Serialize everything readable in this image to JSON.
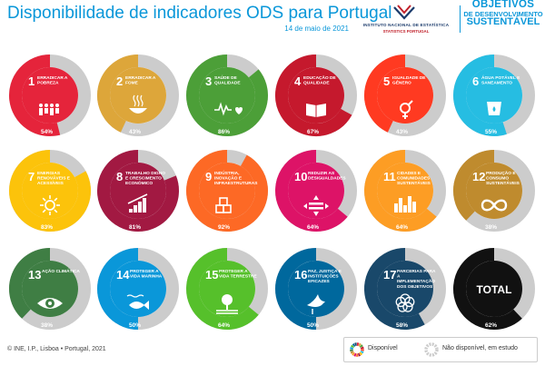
{
  "header": {
    "title": "Disponibilidade de indicadores ODS para Portugal",
    "date": "14 de maio de 2021",
    "ine_line1": "INSTITUTO NACIONAL DE ESTATÍSTICA",
    "ine_line2": "STATISTICS PORTUGAL",
    "sdg_brand_line1": "OBJETIVOS",
    "sdg_brand_line2": "DE DESENVOLVIMENTO",
    "sdg_brand_line3": "SUSTENTÁVEL"
  },
  "footer": {
    "copyright": "© INE, I.P., Lisboa • Portugal, 2021",
    "legend_available": "Disponível",
    "legend_unavailable": "Não disponível, em estudo"
  },
  "colors": {
    "brand_blue": "#0a97d9",
    "unavailable": "#cccccc"
  },
  "chart_data": {
    "type": "donut-grid",
    "unit": "%",
    "series": [
      {
        "name": "Disponível"
      },
      {
        "name": "Não disponível, em estudo"
      }
    ],
    "goals": [
      {
        "number": "1",
        "label": "ERRADICAR A POBREZA",
        "value": 54,
        "value_label": "54%",
        "color": "#e5243b",
        "icon": "family-icon"
      },
      {
        "number": "2",
        "label": "ERRADICAR A FOME",
        "value": 43,
        "value_label": "43%",
        "color": "#dda63a",
        "icon": "bowl-icon"
      },
      {
        "number": "3",
        "label": "SAÚDE DE QUALIDADE",
        "value": 86,
        "value_label": "86%",
        "color": "#4c9f38",
        "icon": "heartbeat-icon"
      },
      {
        "number": "4",
        "label": "EDUCAÇÃO DE QUALIDADE",
        "value": 67,
        "value_label": "67%",
        "color": "#c5192d",
        "icon": "book-icon"
      },
      {
        "number": "5",
        "label": "IGUALDADE DE GÉNERO",
        "value": 43,
        "value_label": "43%",
        "color": "#ff3a21",
        "icon": "gender-icon"
      },
      {
        "number": "6",
        "label": "ÁGUA POTÁVEL E SANEAMENTO",
        "value": 55,
        "value_label": "55%",
        "color": "#26bde2",
        "icon": "water-icon"
      },
      {
        "number": "7",
        "label": "ENERGIAS RENOVÁVEIS E ACESSÍVEIS",
        "value": 83,
        "value_label": "83%",
        "color": "#fcc30b",
        "icon": "sun-icon"
      },
      {
        "number": "8",
        "label": "TRABALHO DIGNO E CRESCIMENTO ECONÓMICO",
        "value": 81,
        "value_label": "81%",
        "color": "#a21942",
        "icon": "growth-chart-icon"
      },
      {
        "number": "9",
        "label": "INDÚSTRIA, INOVAÇÃO E INFRAESTRUTURAS",
        "value": 92,
        "value_label": "92%",
        "color": "#fd6925",
        "icon": "cubes-icon"
      },
      {
        "number": "10",
        "label": "REDUZIR AS DESIGUALDADES",
        "value": 64,
        "value_label": "64%",
        "color": "#dd1367",
        "icon": "equality-icon"
      },
      {
        "number": "11",
        "label": "CIDADES E COMUNIDADES SUSTENTÁVEIS",
        "value": 64,
        "value_label": "64%",
        "color": "#fd9d24",
        "icon": "city-icon"
      },
      {
        "number": "12",
        "label": "PRODUÇÃO E CONSUMO SUSTENTÁVEIS",
        "value": 38,
        "value_label": "38%",
        "color": "#bf8b2e",
        "icon": "infinity-icon"
      },
      {
        "number": "13",
        "label": "AÇÃO CLIMÁTICA",
        "value": 38,
        "value_label": "38%",
        "color": "#3f7e44",
        "icon": "eye-globe-icon"
      },
      {
        "number": "14",
        "label": "PROTEGER A VIDA MARINHA",
        "value": 50,
        "value_label": "50%",
        "color": "#0a97d9",
        "icon": "fish-icon"
      },
      {
        "number": "15",
        "label": "PROTEGER A VIDA TERRESTRE",
        "value": 64,
        "value_label": "64%",
        "color": "#56c02b",
        "icon": "tree-icon"
      },
      {
        "number": "16",
        "label": "PAZ, JUSTIÇA E INSTITUIÇÕES EFICAZES",
        "value": 50,
        "value_label": "50%",
        "color": "#00689d",
        "icon": "dove-icon"
      },
      {
        "number": "17",
        "label": "PARCERIAS PARA A IMPLEMENTAÇÃO DOS OBJETIVOS",
        "value": 58,
        "value_label": "58%",
        "color": "#19486a",
        "icon": "flower-icon"
      },
      {
        "number": "",
        "label": "TOTAL",
        "value": 62,
        "value_label": "62%",
        "color": "#111111",
        "icon": ""
      }
    ]
  }
}
